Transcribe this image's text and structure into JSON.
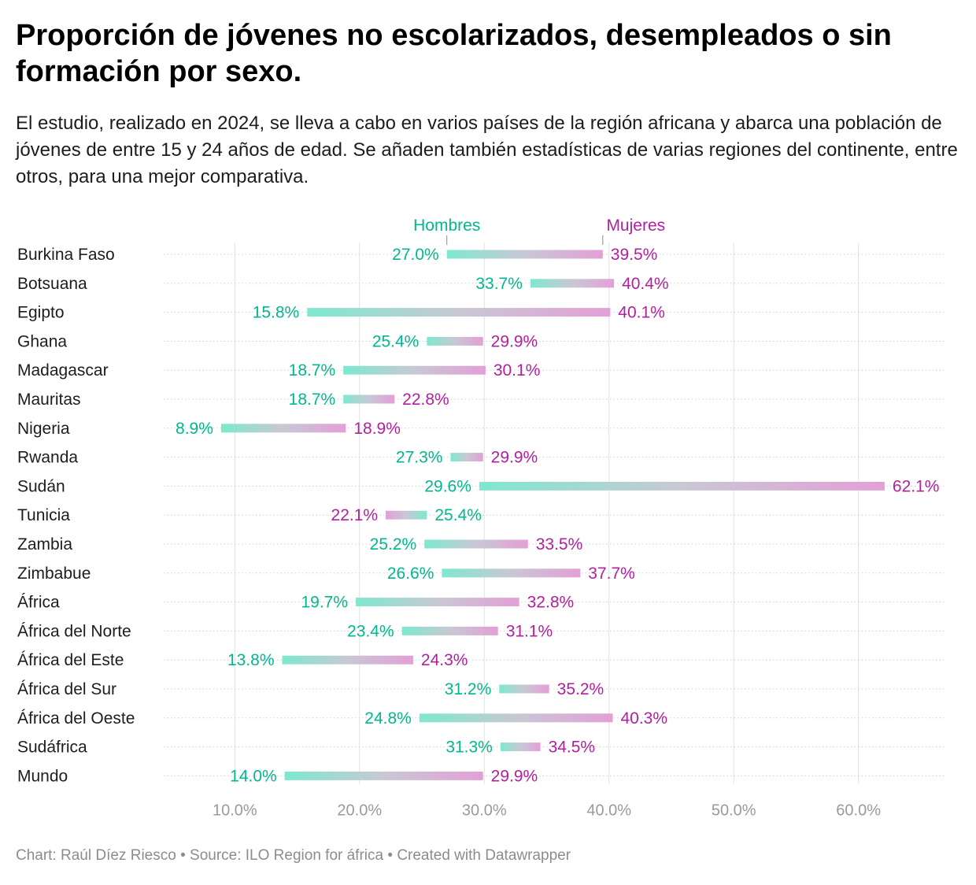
{
  "header": {
    "title": "Proporción de jóvenes no escolarizados, desempleados o sin formación por sexo.",
    "subtitle": "El estudio, realizado en 2024, se lleva a cabo en varios países de la región africana y abarca una población de jóvenes de entre 15 y 24 años de edad. Se añaden también estadísticas de varias regiones del continente, entre otros, para una mejor comparativa."
  },
  "footer": {
    "credit": "Chart: Raúl Díez Riesco",
    "source": "Source: ILO Region for áfrica",
    "tool": "Created with Datawrapper",
    "separator": " • "
  },
  "chart_data": {
    "type": "range-dot",
    "title": "Proporción de jóvenes no escolarizados, desempleados o sin formación por sexo.",
    "xlabel": "",
    "ylabel": "",
    "xlim": [
      4.3,
      66.9
    ],
    "x_ticks": [
      10,
      20,
      30,
      40,
      50,
      60
    ],
    "x_tick_labels": [
      "10.0%",
      "20.0%",
      "30.0%",
      "40.0%",
      "50.0%",
      "60.0%"
    ],
    "grid": true,
    "legend": "top, labels over first row",
    "colors": {
      "hombres": "#00b78f",
      "mujeres": "#b2209e",
      "bar_start": "#7ee8cf",
      "bar_end": "#e39fd7"
    },
    "categories": [
      "Burkina Faso",
      "Botsuana",
      "Egipto",
      "Ghana",
      "Madagascar",
      "Mauritas",
      "Nigeria",
      "Rwanda",
      "Sudán",
      "Tunicia",
      "Zambia",
      "Zimbabue",
      "África",
      "África del Norte",
      "África del Este",
      "África del Sur",
      "África del Oeste",
      "Sudáfrica",
      "Mundo"
    ],
    "series": [
      {
        "name": "Hombres",
        "values": [
          27.0,
          33.7,
          15.8,
          25.4,
          18.7,
          18.7,
          8.9,
          27.3,
          29.6,
          25.4,
          25.2,
          26.6,
          19.7,
          23.4,
          13.8,
          31.2,
          24.8,
          31.3,
          14.0
        ]
      },
      {
        "name": "Mujeres",
        "values": [
          39.5,
          40.4,
          40.1,
          29.9,
          30.1,
          22.8,
          18.9,
          29.9,
          62.1,
          22.1,
          33.5,
          37.7,
          32.8,
          31.1,
          24.3,
          35.2,
          40.3,
          34.5,
          29.9
        ]
      }
    ]
  }
}
